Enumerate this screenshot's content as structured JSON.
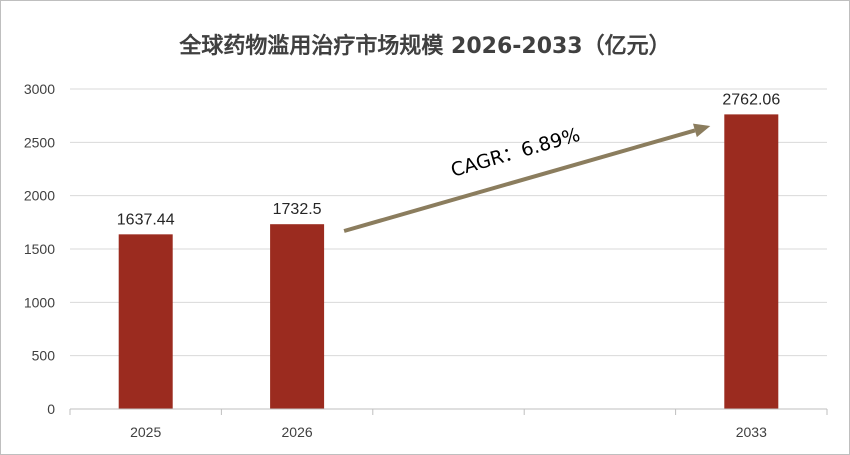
{
  "chart_data": {
    "type": "bar",
    "title": "全球药物滥用治疗市场规模 2026-2033（亿元）",
    "categories": [
      "2025",
      "2026",
      "",
      "",
      "2033"
    ],
    "values": [
      1637.44,
      1732.5,
      null,
      null,
      2762.06
    ],
    "data_labels": [
      "1637.44",
      "1732.5",
      "",
      "",
      "2762.06"
    ],
    "ylim": [
      0,
      3000
    ],
    "yticks": [
      0,
      500,
      1000,
      1500,
      2000,
      2500,
      3000
    ],
    "grid": true,
    "bar_color": "#9B2B1F",
    "annotation": {
      "text": "CAGR：6.89%",
      "arrow_color": "#8B7D5E",
      "from_category_index": 1,
      "to_category_index": 4
    }
  }
}
